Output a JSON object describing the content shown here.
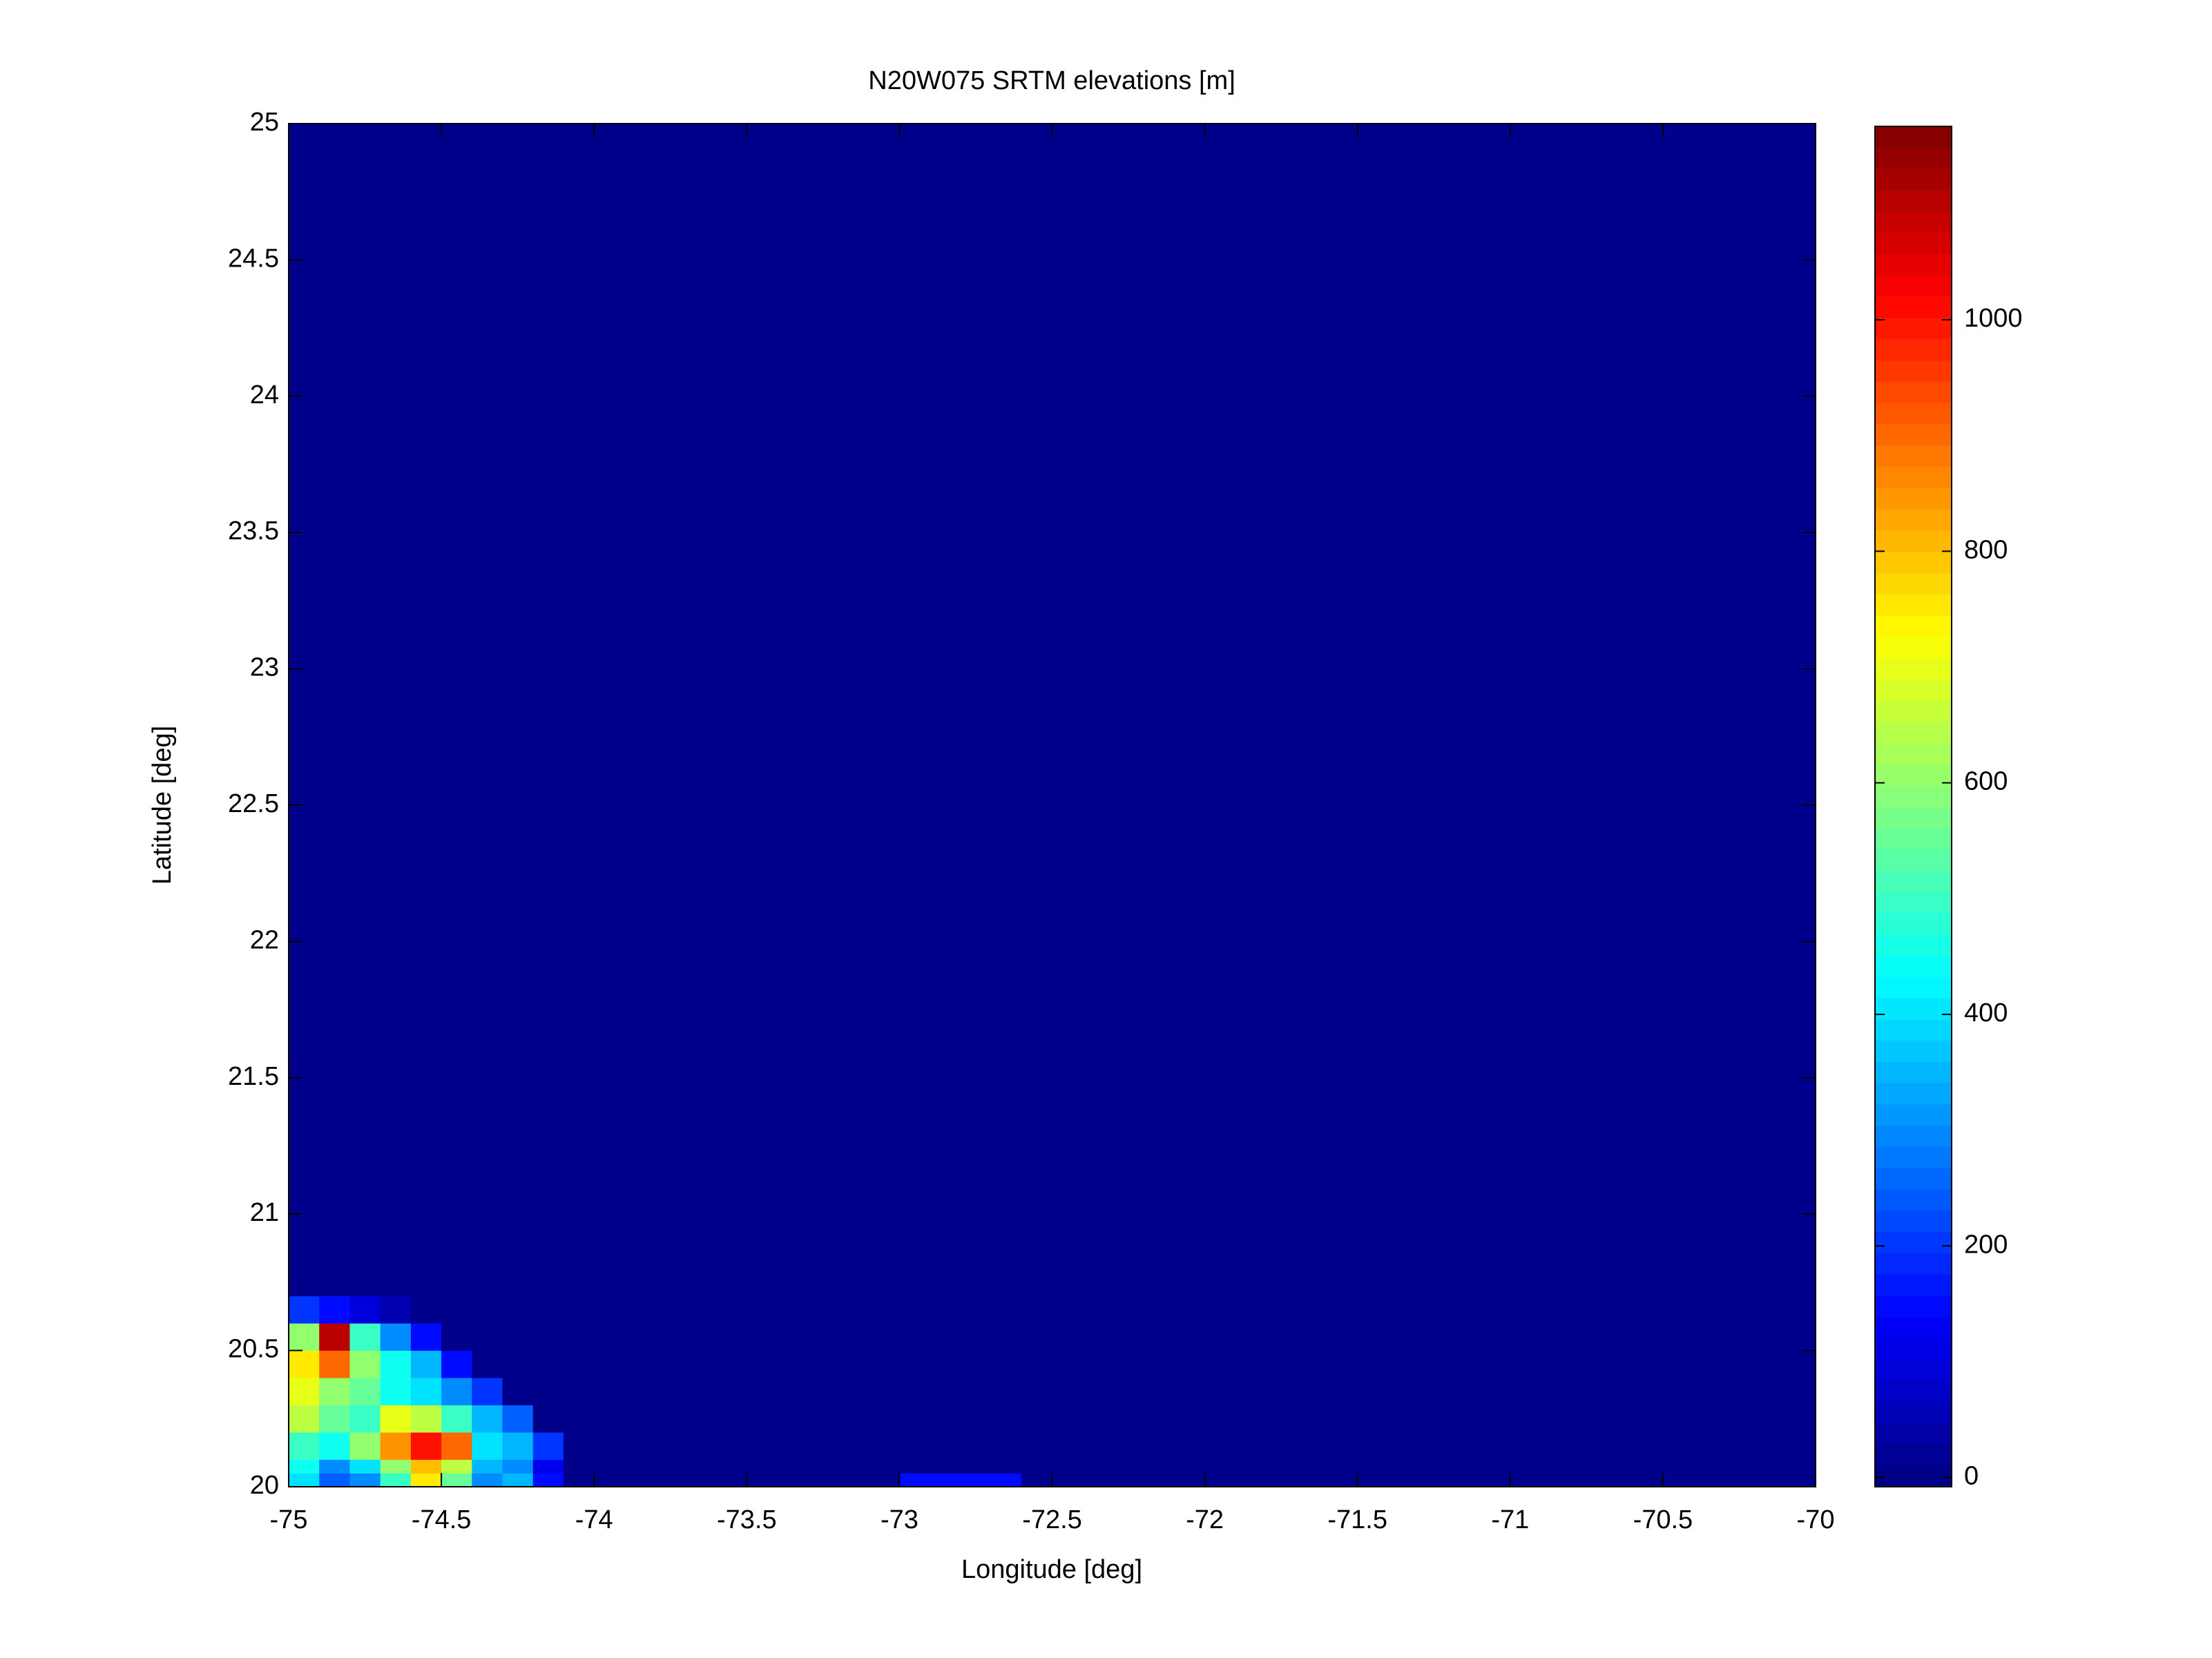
{
  "chart_data": {
    "type": "heatmap",
    "title": "N20W075 SRTM elevations [m]",
    "x_label": "Longitude [deg]",
    "y_label": "Latitude [deg]",
    "xlim": [
      -75,
      -70
    ],
    "ylim": [
      20,
      25
    ],
    "xticks": [
      -75,
      -74.5,
      -74,
      -73.5,
      -73,
      -72.5,
      -72,
      -71.5,
      -71,
      -70.5,
      -70
    ],
    "yticks": [
      20,
      20.5,
      21,
      21.5,
      22,
      22.5,
      23,
      23.5,
      24,
      24.5,
      25
    ],
    "colormap": "jet",
    "clim": [
      -8,
      1167
    ],
    "colorbar_ticks": [
      0,
      200,
      400,
      600,
      800,
      1000
    ],
    "x_edges": [
      -75,
      -74.9,
      -74.8,
      -74.7,
      -74.6,
      -74.5,
      -74.4,
      -74.3,
      -74.2,
      -74.1,
      -73,
      -72.6,
      -70
    ],
    "y_edges": [
      20,
      20.05,
      20.1,
      20.2,
      20.3,
      20.4,
      20.5,
      20.6,
      20.7,
      25
    ],
    "z": [
      [
        400,
        250,
        300,
        500,
        750,
        550,
        300,
        350,
        150,
        5,
        150,
        5
      ],
      [
        450,
        300,
        400,
        600,
        800,
        650,
        350,
        300,
        120,
        5,
        5,
        5
      ],
      [
        500,
        450,
        600,
        850,
        1000,
        900,
        400,
        350,
        200,
        5,
        5,
        5
      ],
      [
        650,
        550,
        500,
        700,
        650,
        500,
        350,
        250,
        5,
        5,
        5,
        5
      ],
      [
        700,
        600,
        550,
        450,
        400,
        300,
        200,
        5,
        5,
        5,
        5,
        5
      ],
      [
        750,
        900,
        600,
        450,
        350,
        150,
        5,
        5,
        5,
        5,
        5,
        5
      ],
      [
        600,
        1100,
        500,
        300,
        150,
        5,
        5,
        5,
        5,
        5,
        5,
        5
      ],
      [
        200,
        150,
        100,
        50,
        5,
        5,
        5,
        5,
        5,
        5,
        5,
        5
      ],
      [
        5,
        5,
        5,
        5,
        5,
        5,
        5,
        5,
        5,
        5,
        5,
        5
      ]
    ]
  }
}
